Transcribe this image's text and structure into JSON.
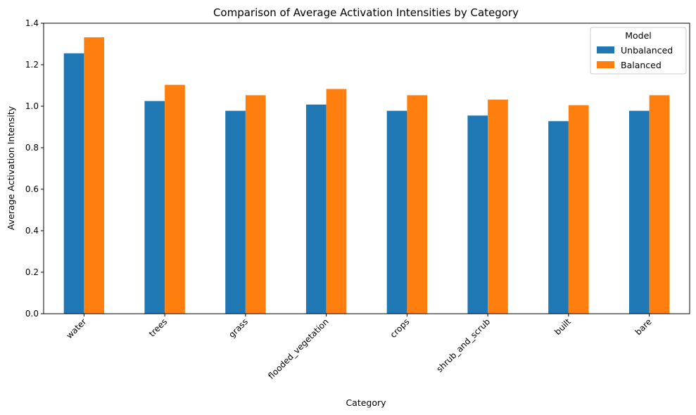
{
  "chart_data": {
    "type": "bar",
    "title": "Comparison of Average Activation Intensities by Category",
    "xlabel": "Category",
    "ylabel": "Average Activation Intensity",
    "categories": [
      "water",
      "trees",
      "grass",
      "flooded_vegetation",
      "crops",
      "shrub_and_scrub",
      "built",
      "bare"
    ],
    "series": [
      {
        "name": "Unbalanced",
        "color": "#1f77b4",
        "values": [
          1.255,
          1.025,
          0.978,
          1.008,
          0.978,
          0.955,
          0.928,
          0.978
        ]
      },
      {
        "name": "Balanced",
        "color": "#ff7f0e",
        "values": [
          1.332,
          1.103,
          1.053,
          1.083,
          1.053,
          1.032,
          1.005,
          1.053
        ]
      }
    ],
    "ylim": [
      0,
      1.4
    ],
    "yticks": [
      0.0,
      0.2,
      0.4,
      0.6,
      0.8,
      1.0,
      1.2,
      1.4
    ],
    "ytick_labels": [
      "0.0",
      "0.2",
      "0.4",
      "0.6",
      "0.8",
      "1.0",
      "1.2",
      "1.4"
    ],
    "legend": {
      "title": "Model",
      "placement": "top-right"
    },
    "grid": false
  }
}
